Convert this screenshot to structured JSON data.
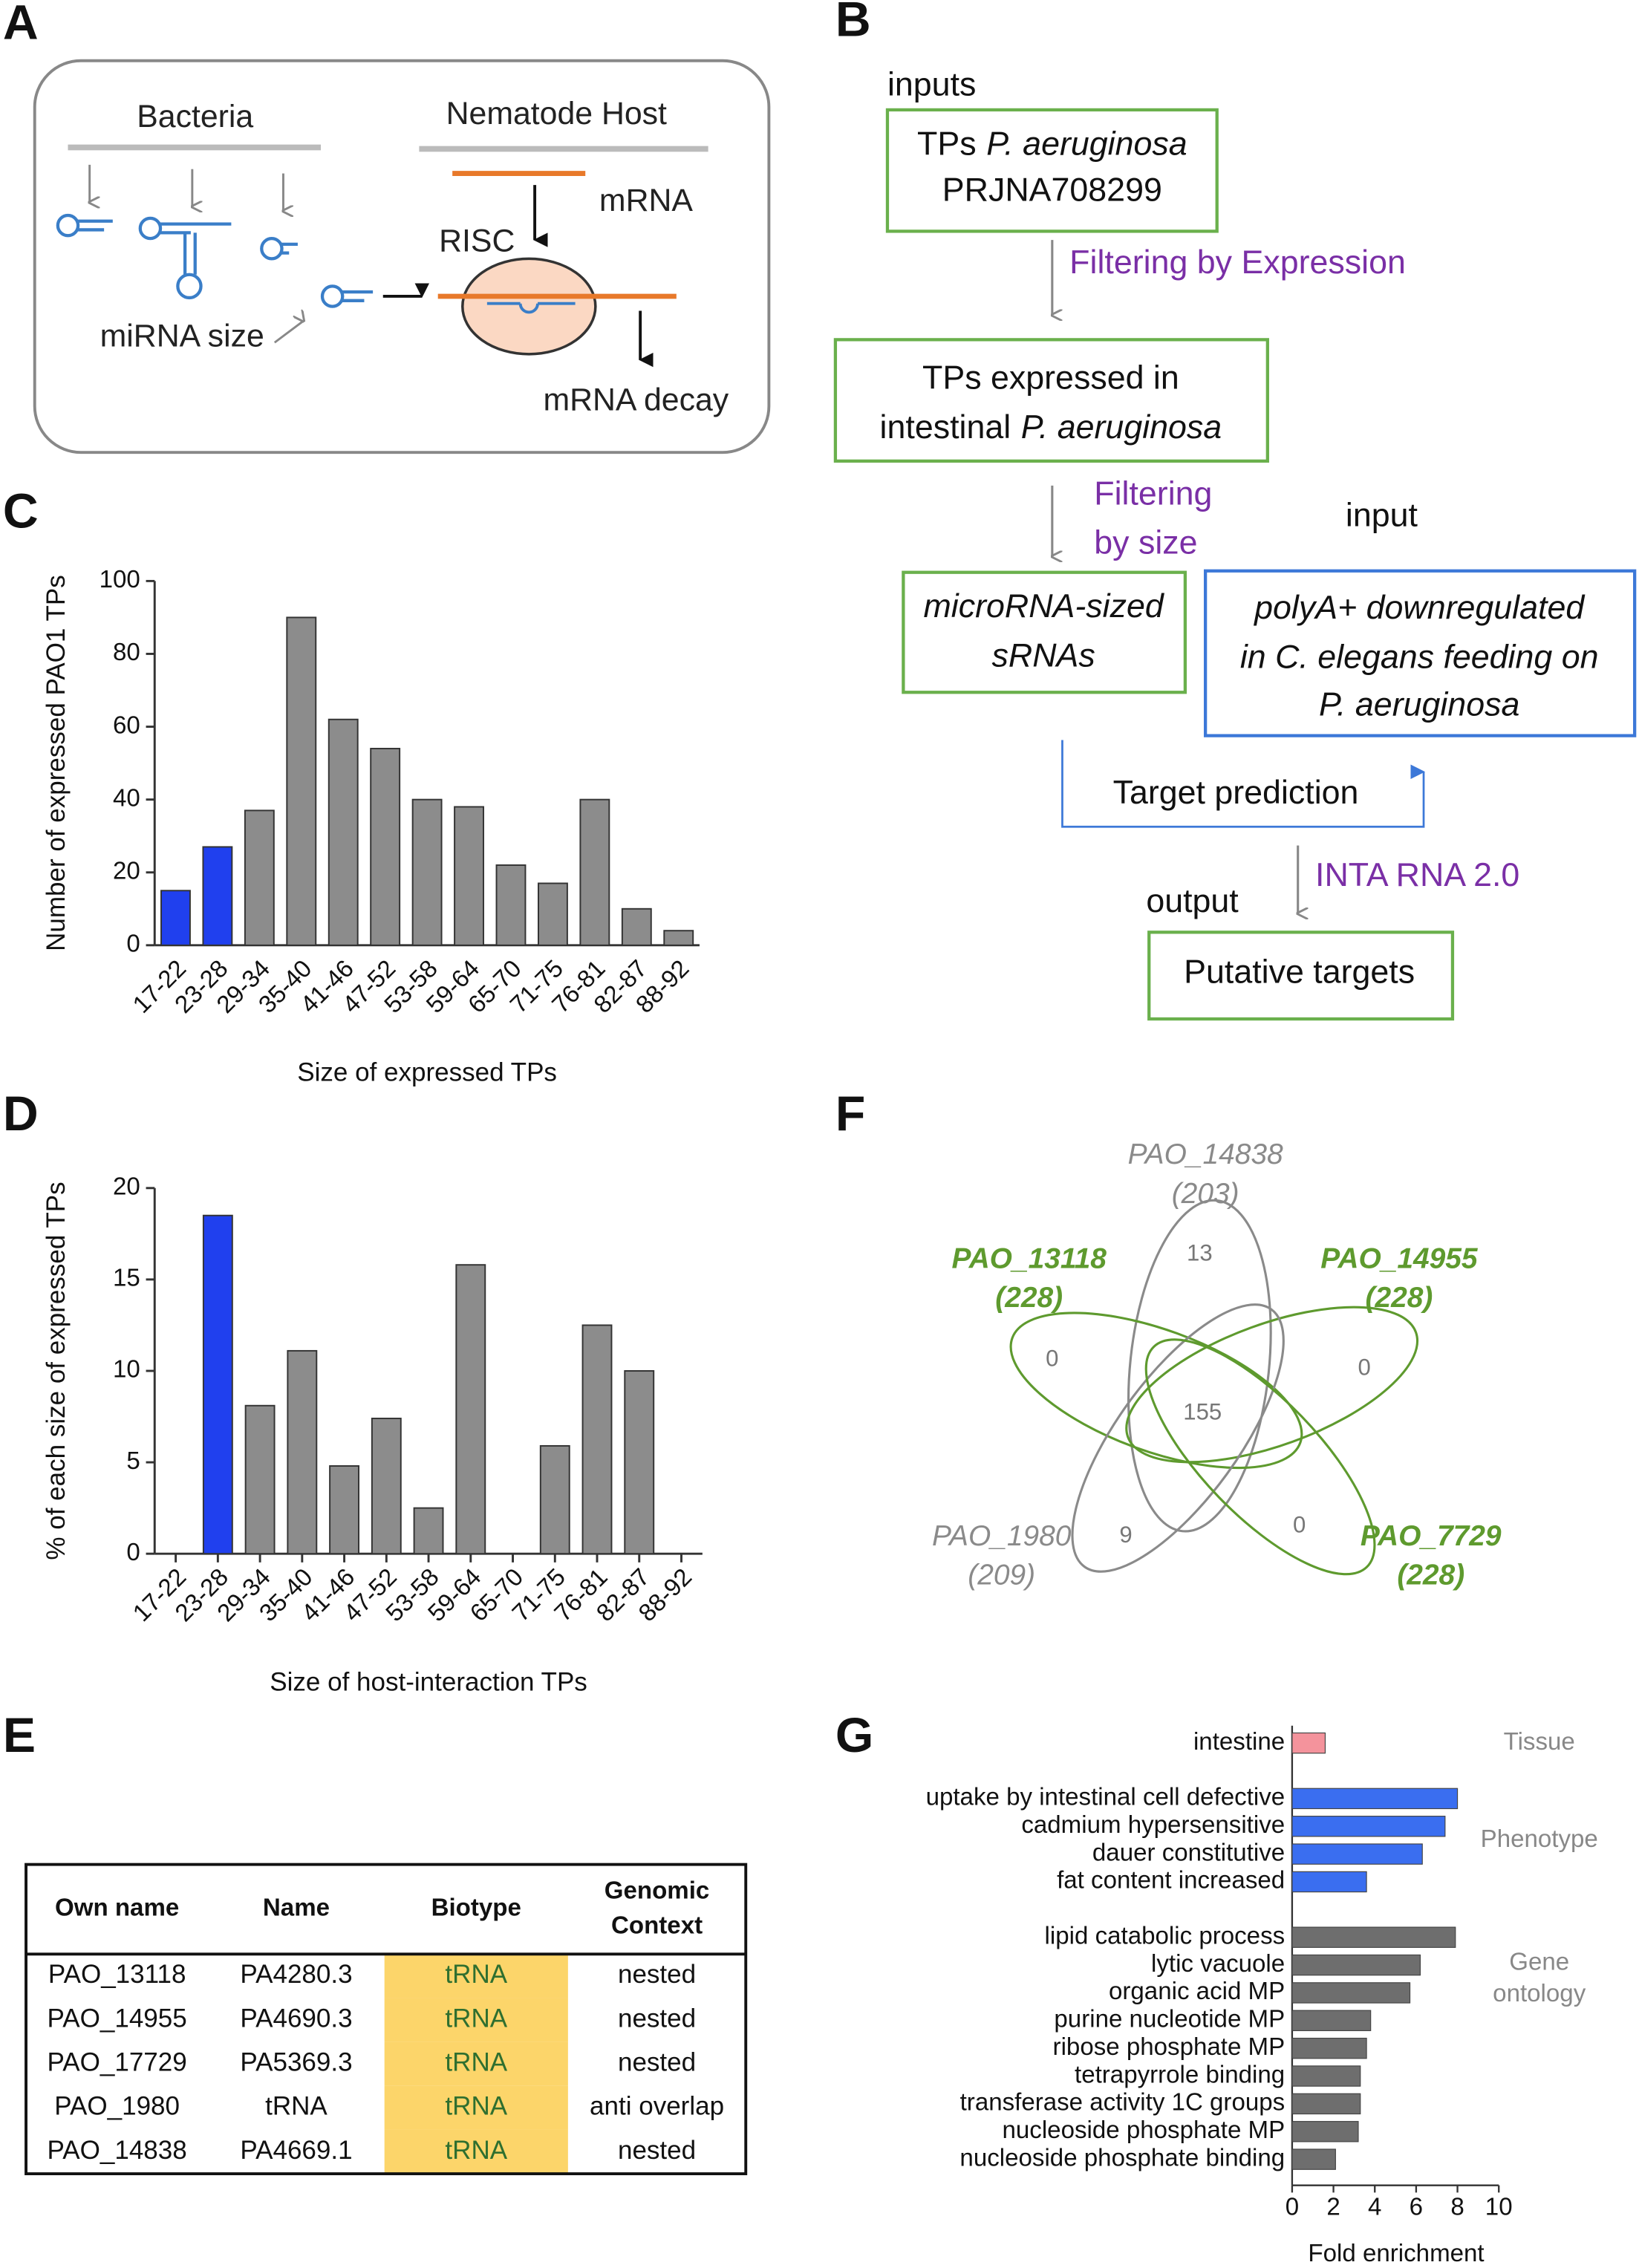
{
  "panel_labels": {
    "a": "A",
    "b": "B",
    "c": "C",
    "d": "D",
    "e": "E",
    "f": "F",
    "g": "G"
  },
  "diagram_a": {
    "bacteria": "Bacteria",
    "host": "Nematode Host",
    "mrna": "mRNA",
    "risc": "RISC",
    "mirna_size": "miRNA size",
    "mrna_decay": "mRNA decay"
  },
  "flowchart_b": {
    "inputs": "inputs",
    "box1": [
      "TPs",
      "P. aeruginosa",
      "PRJNA708299"
    ],
    "filter_expression": "Filtering by Expression",
    "box2": [
      "TPs expressed in",
      "intestinal",
      "P. aeruginosa"
    ],
    "filter_size": [
      "Filtering",
      "by size"
    ],
    "input": "input",
    "box3": [
      "microRNA-sized",
      "sRNAs"
    ],
    "box4": [
      "polyA+ downregulated",
      "in C. elegans feeding on",
      "P. aeruginosa"
    ],
    "target_prediction": "Target prediction",
    "tool": "INTA RNA 2.0",
    "output": "output",
    "box5": "Putative targets"
  },
  "chart_data": [
    {
      "type": "bar",
      "categories": [
        "17-22",
        "23-28",
        "29-34",
        "35-40",
        "41-46",
        "47-52",
        "53-58",
        "59-64",
        "65-70",
        "71-75",
        "76-81",
        "82-87",
        "88-92"
      ],
      "values": [
        15,
        27,
        37,
        90,
        62,
        54,
        40,
        38,
        22,
        17,
        40,
        10,
        4
      ],
      "colors": [
        "#2040ee",
        "#2040ee",
        "#8c8c8c",
        "#8c8c8c",
        "#8c8c8c",
        "#8c8c8c",
        "#8c8c8c",
        "#8c8c8c",
        "#8c8c8c",
        "#8c8c8c",
        "#8c8c8c",
        "#8c8c8c",
        "#8c8c8c"
      ],
      "ylim": [
        0,
        100
      ],
      "yticks": [
        0,
        20,
        40,
        60,
        80,
        100
      ],
      "ylabel": "Number of expressed PAO1 TPs",
      "xlabel": "Size of expressed TPs"
    },
    {
      "type": "bar",
      "categories": [
        "17-22",
        "23-28",
        "29-34",
        "35-40",
        "41-46",
        "47-52",
        "53-58",
        "59-64",
        "65-70",
        "71-75",
        "76-81",
        "82-87",
        "88-92"
      ],
      "values": [
        0,
        18.5,
        8.1,
        11.1,
        4.8,
        7.4,
        2.5,
        15.8,
        0,
        5.9,
        12.5,
        10,
        0
      ],
      "colors": [
        "#8c8c8c",
        "#2040ee",
        "#8c8c8c",
        "#8c8c8c",
        "#8c8c8c",
        "#8c8c8c",
        "#8c8c8c",
        "#8c8c8c",
        "#8c8c8c",
        "#8c8c8c",
        "#8c8c8c",
        "#8c8c8c",
        "#8c8c8c"
      ],
      "ylim": [
        0,
        20
      ],
      "yticks": [
        0,
        5,
        10,
        15,
        20
      ],
      "ylabel": "% of each size of expressed TPs",
      "xlabel": "Size of host-interaction TPs"
    },
    {
      "type": "bar",
      "orientation": "horizontal",
      "groups": [
        {
          "label": "Tissue",
          "color": "#f4939c",
          "categories": [
            "intestine"
          ],
          "values": [
            1.6
          ]
        },
        {
          "label": "Phenotype",
          "color": "#3a6ef0",
          "categories": [
            "uptake by intestinal cell defective",
            "cadmium hypersensitive",
            "dauer constitutive",
            "fat content increased"
          ],
          "values": [
            8.0,
            7.4,
            6.3,
            3.6
          ]
        },
        {
          "label": "Gene ontology",
          "color": "#6e6e6e",
          "categories": [
            "lipid catabolic process",
            "lytic vacuole",
            "organic acid MP",
            "purine nucleotide MP",
            "ribose phosphate MP",
            "tetrapyrrole binding",
            "transferase activity 1C groups",
            "nucleoside phosphate MP",
            "nucleoside phosphate binding"
          ],
          "values": [
            7.9,
            6.2,
            5.7,
            3.8,
            3.6,
            3.3,
            3.3,
            3.2,
            2.1
          ]
        }
      ],
      "xlim": [
        0,
        10
      ],
      "xticks": [
        0,
        2,
        4,
        6,
        8,
        10
      ],
      "xlabel": "Fold enrichment"
    }
  ],
  "table_e": {
    "header": [
      "Own name",
      "Name",
      "Biotype",
      "Genomic Context"
    ],
    "rows": [
      [
        "PAO_13118",
        "PA4280.3",
        "tRNA",
        "nested"
      ],
      [
        "PAO_14955",
        "PA4690.3",
        "tRNA",
        "nested"
      ],
      [
        "PAO_17729",
        "PA5369.3",
        "tRNA",
        "nested"
      ],
      [
        "PAO_1980",
        "tRNA",
        "tRNA",
        "anti overlap"
      ],
      [
        "PAO_14838",
        "PA4669.1",
        "tRNA",
        "nested"
      ]
    ]
  },
  "venn_f": {
    "sets": [
      {
        "name": "PAO_14838",
        "size": "(203)",
        "color": "#8a8a8a"
      },
      {
        "name": "PAO_13118",
        "size": "(228)",
        "color": "#5e9a2e"
      },
      {
        "name": "PAO_14955",
        "size": "(228)",
        "color": "#5e9a2e"
      },
      {
        "name": "PAO_1980",
        "size": "(209)",
        "color": "#8a8a8a"
      },
      {
        "name": "PAO_7729",
        "size": "(228)",
        "color": "#5e9a2e"
      }
    ],
    "counts": [
      "13",
      "0",
      "0",
      "155",
      "9",
      "0"
    ]
  }
}
